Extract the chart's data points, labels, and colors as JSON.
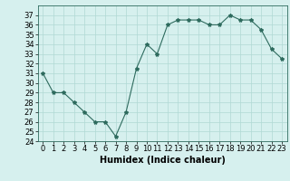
{
  "x": [
    0,
    1,
    2,
    3,
    4,
    5,
    6,
    7,
    8,
    9,
    10,
    11,
    12,
    13,
    14,
    15,
    16,
    17,
    18,
    19,
    20,
    21,
    22,
    23
  ],
  "y": [
    31.0,
    29.0,
    29.0,
    28.0,
    27.0,
    26.0,
    26.0,
    24.5,
    27.0,
    31.5,
    34.0,
    33.0,
    36.0,
    36.5,
    36.5,
    36.5,
    36.0,
    36.0,
    37.0,
    36.5,
    36.5,
    35.5,
    33.5,
    32.5
  ],
  "xlabel": "Humidex (Indice chaleur)",
  "ylim": [
    24,
    38
  ],
  "xlim": [
    -0.5,
    23.5
  ],
  "yticks": [
    24,
    25,
    26,
    27,
    28,
    29,
    30,
    31,
    32,
    33,
    34,
    35,
    36,
    37
  ],
  "xticks": [
    0,
    1,
    2,
    3,
    4,
    5,
    6,
    7,
    8,
    9,
    10,
    11,
    12,
    13,
    14,
    15,
    16,
    17,
    18,
    19,
    20,
    21,
    22,
    23
  ],
  "line_color": "#2e6b5e",
  "marker": "*",
  "bg_color": "#d6f0ee",
  "grid_color": "#b0d8d4",
  "axis_fontsize": 7,
  "tick_fontsize": 6,
  "xlabel_fontsize": 7
}
